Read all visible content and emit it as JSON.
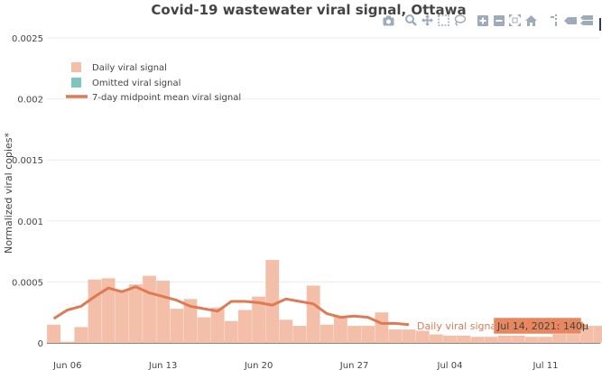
{
  "chart_data": {
    "type": "bar",
    "title": "Covid-19 wastewater viral signal, Ottawa",
    "ylabel": "Normalized viral copies*",
    "xlabel": "",
    "ylim": [
      0,
      0.0025
    ],
    "y_ticks": [
      {
        "value": 0,
        "label": "0"
      },
      {
        "value": 0.0005,
        "label": "0.0005"
      },
      {
        "value": 0.001,
        "label": "0.001"
      },
      {
        "value": 0.0015,
        "label": "0.0015"
      },
      {
        "value": 0.002,
        "label": "0.002"
      },
      {
        "value": 0.0025,
        "label": "0.0025"
      }
    ],
    "x_ticks": [
      {
        "date": "2021-06-06",
        "label": "Jun 06"
      },
      {
        "date": "2021-06-13",
        "label": "Jun 13"
      },
      {
        "date": "2021-06-20",
        "label": "Jun 20"
      },
      {
        "date": "2021-06-27",
        "label": "Jun 27"
      },
      {
        "date": "2021-07-04",
        "label": "Jul 04"
      },
      {
        "date": "2021-07-11",
        "label": "Jul 11"
      }
    ],
    "x_range": [
      "2021-06-05",
      "2021-07-15"
    ],
    "grid": true,
    "legend_position": "top-left",
    "series": [
      {
        "name": "Daily viral signal",
        "kind": "bar",
        "color": "#f3bfa8",
        "x": [
          "2021-06-05",
          "2021-06-06",
          "2021-06-07",
          "2021-06-08",
          "2021-06-09",
          "2021-06-10",
          "2021-06-11",
          "2021-06-12",
          "2021-06-13",
          "2021-06-14",
          "2021-06-15",
          "2021-06-16",
          "2021-06-17",
          "2021-06-18",
          "2021-06-19",
          "2021-06-20",
          "2021-06-21",
          "2021-06-22",
          "2021-06-23",
          "2021-06-24",
          "2021-06-25",
          "2021-06-26",
          "2021-06-27",
          "2021-06-28",
          "2021-06-29",
          "2021-06-30",
          "2021-07-01",
          "2021-07-02",
          "2021-07-03",
          "2021-07-04",
          "2021-07-05",
          "2021-07-06",
          "2021-07-07",
          "2021-07-08",
          "2021-07-09",
          "2021-07-10",
          "2021-07-11",
          "2021-07-12",
          "2021-07-13",
          "2021-07-14",
          "2021-07-15"
        ],
        "y": [
          0.00015,
          1e-05,
          0.00013,
          0.00052,
          0.00053,
          0.00043,
          0.00048,
          0.00055,
          0.00051,
          0.00028,
          0.00036,
          0.00021,
          0.00029,
          0.00018,
          0.00027,
          0.00038,
          0.00068,
          0.00019,
          0.00014,
          0.00047,
          0.00015,
          0.00022,
          0.00014,
          0.00014,
          0.00025,
          0.00011,
          0.00011,
          0.0001,
          7e-05,
          6e-05,
          6e-05,
          5e-05,
          5e-05,
          6e-05,
          6e-05,
          5e-05,
          5e-05,
          8e-05,
          9e-05,
          0.00014,
          0.00014
        ]
      },
      {
        "name": "Omitted viral signal",
        "kind": "bar",
        "color": "#7ec4c0",
        "x": [],
        "y": []
      },
      {
        "name": "7-day midpoint mean viral signal",
        "kind": "line",
        "color": "#e07a55",
        "x": [
          "2021-06-05",
          "2021-06-06",
          "2021-06-07",
          "2021-06-08",
          "2021-06-09",
          "2021-06-10",
          "2021-06-11",
          "2021-06-12",
          "2021-06-13",
          "2021-06-14",
          "2021-06-15",
          "2021-06-16",
          "2021-06-17",
          "2021-06-18",
          "2021-06-19",
          "2021-06-20",
          "2021-06-21",
          "2021-06-22",
          "2021-06-23",
          "2021-06-24",
          "2021-06-25",
          "2021-06-26",
          "2021-06-27",
          "2021-06-28",
          "2021-06-29",
          "2021-06-30",
          "2021-07-01"
        ],
        "y": [
          0.0002,
          0.00027,
          0.0003,
          0.00038,
          0.00045,
          0.00042,
          0.00046,
          0.00041,
          0.00038,
          0.00035,
          0.0003,
          0.00028,
          0.00026,
          0.00034,
          0.00034,
          0.00033,
          0.00031,
          0.00036,
          0.00034,
          0.00032,
          0.00024,
          0.00021,
          0.00022,
          0.00021,
          0.00016,
          0.00016,
          0.00015
        ]
      }
    ],
    "hover": {
      "series_label": "Daily viral signal",
      "text": "Jul 14, 2021: 140µ",
      "date": "2021-07-14",
      "value": 0.00014
    }
  },
  "modebar": {
    "icons": [
      "camera-icon",
      "zoom-icon",
      "pan-icon",
      "box-select-icon",
      "lasso-select-icon",
      "zoom-in-icon",
      "zoom-out-icon",
      "autoscale-icon",
      "reset-axes-icon",
      "spike-lines-icon",
      "hover-closest-icon",
      "hover-compare-icon"
    ]
  }
}
